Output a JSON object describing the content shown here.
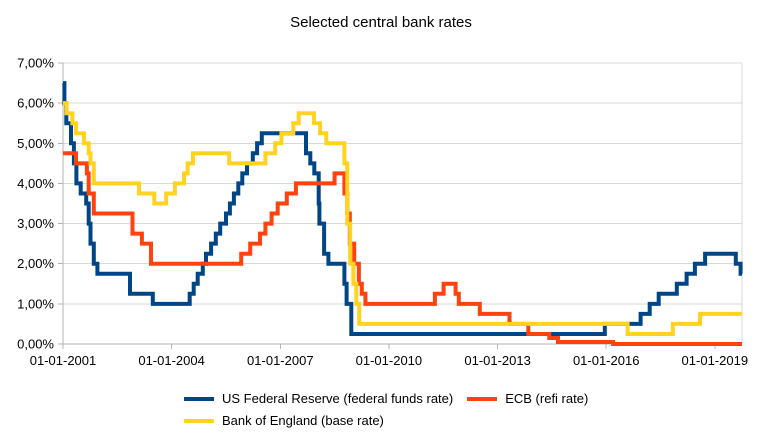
{
  "title": "Selected central bank rates",
  "chart_data": {
    "type": "line",
    "step": true,
    "title": "Selected central bank rates",
    "grid": "horizontal",
    "legend_position": "bottom",
    "style": {
      "background": "#ffffff",
      "grid_color": "#d9d9d9",
      "axis_color": "#b3b3b3",
      "text_color": "#000000",
      "line_width": 4
    },
    "x_axis": {
      "label_format": "dd-mm-yyyy",
      "min": 2001,
      "max": 2019.75,
      "tick_values": [
        2001,
        2004,
        2007,
        2010,
        2013,
        2016,
        2019
      ],
      "tick_labels": [
        "01-01-2001",
        "01-01-2004",
        "01-01-2007",
        "01-01-2010",
        "01-01-2013",
        "01-01-2016",
        "01-01-2019"
      ]
    },
    "y_axis": {
      "unit": "%",
      "min": 0,
      "max": 7,
      "tick_values": [
        0,
        1,
        2,
        3,
        4,
        5,
        6,
        7
      ],
      "tick_labels": [
        "0,00%",
        "1,00%",
        "2,00%",
        "3,00%",
        "4,00%",
        "5,00%",
        "6,00%",
        "7,00%"
      ]
    },
    "series": [
      {
        "name": "US Federal Reserve (federal funds rate)",
        "color": "#004586",
        "points": [
          [
            2001.0,
            6.5
          ],
          [
            2001.04,
            6.0
          ],
          [
            2001.09,
            5.5
          ],
          [
            2001.22,
            5.0
          ],
          [
            2001.3,
            4.5
          ],
          [
            2001.37,
            4.0
          ],
          [
            2001.49,
            3.75
          ],
          [
            2001.64,
            3.5
          ],
          [
            2001.71,
            3.0
          ],
          [
            2001.76,
            2.5
          ],
          [
            2001.85,
            2.0
          ],
          [
            2001.95,
            1.75
          ],
          [
            2002.85,
            1.25
          ],
          [
            2003.48,
            1.0
          ],
          [
            2004.5,
            1.25
          ],
          [
            2004.61,
            1.5
          ],
          [
            2004.72,
            1.75
          ],
          [
            2004.86,
            2.0
          ],
          [
            2004.95,
            2.25
          ],
          [
            2005.09,
            2.5
          ],
          [
            2005.22,
            2.75
          ],
          [
            2005.34,
            3.0
          ],
          [
            2005.5,
            3.25
          ],
          [
            2005.61,
            3.5
          ],
          [
            2005.72,
            3.75
          ],
          [
            2005.84,
            4.0
          ],
          [
            2005.95,
            4.25
          ],
          [
            2006.08,
            4.5
          ],
          [
            2006.24,
            4.75
          ],
          [
            2006.36,
            5.0
          ],
          [
            2006.49,
            5.25
          ],
          [
            2007.71,
            4.75
          ],
          [
            2007.83,
            4.5
          ],
          [
            2007.94,
            4.25
          ],
          [
            2008.06,
            3.5
          ],
          [
            2008.08,
            3.0
          ],
          [
            2008.21,
            2.25
          ],
          [
            2008.33,
            2.0
          ],
          [
            2008.77,
            1.5
          ],
          [
            2008.83,
            1.0
          ],
          [
            2008.96,
            0.25
          ],
          [
            2015.96,
            0.5
          ],
          [
            2016.95,
            0.75
          ],
          [
            2017.2,
            1.0
          ],
          [
            2017.45,
            1.25
          ],
          [
            2017.95,
            1.5
          ],
          [
            2018.22,
            1.75
          ],
          [
            2018.45,
            2.0
          ],
          [
            2018.73,
            2.25
          ],
          [
            2019.58,
            2.0
          ],
          [
            2019.71,
            1.75
          ]
        ]
      },
      {
        "name": "ECB (refi rate)",
        "color": "#ff420e",
        "points": [
          [
            2001.0,
            4.75
          ],
          [
            2001.36,
            4.5
          ],
          [
            2001.66,
            4.25
          ],
          [
            2001.71,
            3.75
          ],
          [
            2001.85,
            3.25
          ],
          [
            2002.92,
            2.75
          ],
          [
            2003.18,
            2.5
          ],
          [
            2003.43,
            2.0
          ],
          [
            2005.92,
            2.25
          ],
          [
            2006.17,
            2.5
          ],
          [
            2006.44,
            2.75
          ],
          [
            2006.59,
            3.0
          ],
          [
            2006.76,
            3.25
          ],
          [
            2006.93,
            3.5
          ],
          [
            2007.18,
            3.75
          ],
          [
            2007.43,
            4.0
          ],
          [
            2008.5,
            4.25
          ],
          [
            2008.77,
            3.75
          ],
          [
            2008.85,
            3.25
          ],
          [
            2008.92,
            2.5
          ],
          [
            2009.04,
            2.0
          ],
          [
            2009.17,
            1.5
          ],
          [
            2009.25,
            1.25
          ],
          [
            2009.35,
            1.0
          ],
          [
            2011.27,
            1.25
          ],
          [
            2011.51,
            1.5
          ],
          [
            2011.84,
            1.25
          ],
          [
            2011.93,
            1.0
          ],
          [
            2012.51,
            0.75
          ],
          [
            2013.33,
            0.5
          ],
          [
            2013.85,
            0.25
          ],
          [
            2014.43,
            0.15
          ],
          [
            2014.67,
            0.05
          ],
          [
            2016.19,
            0.0
          ]
        ]
      },
      {
        "name": "Bank of England (base rate)",
        "color": "#ffd320",
        "points": [
          [
            2001.0,
            6.0
          ],
          [
            2001.1,
            5.75
          ],
          [
            2001.26,
            5.5
          ],
          [
            2001.36,
            5.25
          ],
          [
            2001.58,
            5.0
          ],
          [
            2001.71,
            4.75
          ],
          [
            2001.76,
            4.5
          ],
          [
            2001.85,
            4.0
          ],
          [
            2003.1,
            3.75
          ],
          [
            2003.52,
            3.5
          ],
          [
            2003.85,
            3.75
          ],
          [
            2004.09,
            4.0
          ],
          [
            2004.34,
            4.25
          ],
          [
            2004.44,
            4.5
          ],
          [
            2004.59,
            4.75
          ],
          [
            2005.59,
            4.5
          ],
          [
            2006.59,
            4.75
          ],
          [
            2006.86,
            5.0
          ],
          [
            2007.03,
            5.25
          ],
          [
            2007.36,
            5.5
          ],
          [
            2007.51,
            5.75
          ],
          [
            2007.93,
            5.5
          ],
          [
            2008.1,
            5.25
          ],
          [
            2008.27,
            5.0
          ],
          [
            2008.77,
            4.5
          ],
          [
            2008.85,
            3.0
          ],
          [
            2008.93,
            2.0
          ],
          [
            2009.02,
            1.5
          ],
          [
            2009.1,
            1.0
          ],
          [
            2009.18,
            0.5
          ],
          [
            2016.59,
            0.25
          ],
          [
            2017.84,
            0.5
          ],
          [
            2018.59,
            0.75
          ]
        ]
      }
    ]
  }
}
